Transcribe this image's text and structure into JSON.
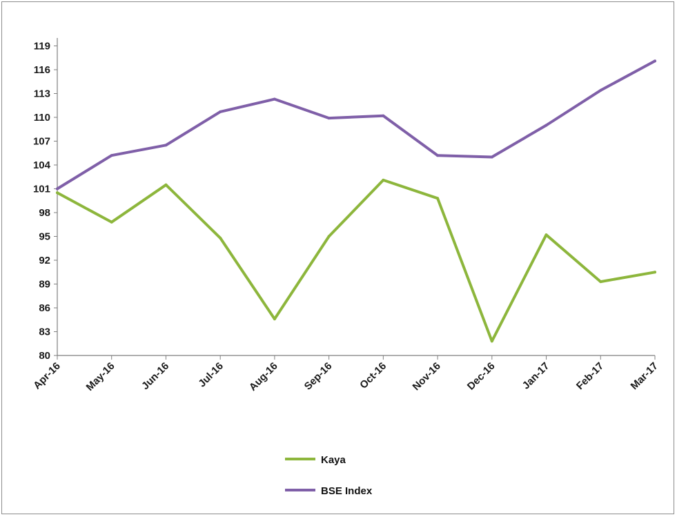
{
  "chart_data": {
    "type": "line",
    "categories": [
      "Apr-16",
      "May-16",
      "Jun-16",
      "Jul-16",
      "Aug-16",
      "Sep-16",
      "Oct-16",
      "Nov-16",
      "Dec-16",
      "Jan-17",
      "Feb-17",
      "Mar-17"
    ],
    "series": [
      {
        "name": "Kaya",
        "color": "#8db63c",
        "values": [
          100.5,
          96.8,
          101.5,
          94.8,
          84.6,
          95.0,
          102.1,
          99.8,
          81.8,
          95.2,
          89.3,
          90.5
        ]
      },
      {
        "name": "BSE Index",
        "color": "#7f5fa8",
        "values": [
          101.0,
          105.2,
          106.5,
          110.7,
          112.3,
          109.9,
          110.2,
          105.2,
          105.0,
          109.0,
          113.4,
          117.1
        ]
      }
    ],
    "yticks": [
      80,
      83,
      86,
      89,
      92,
      95,
      98,
      101,
      104,
      107,
      110,
      113,
      116,
      119
    ],
    "ylim": [
      80,
      120
    ],
    "grid": false,
    "legend_position": "bottom",
    "title": "",
    "xlabel": "",
    "ylabel": ""
  }
}
